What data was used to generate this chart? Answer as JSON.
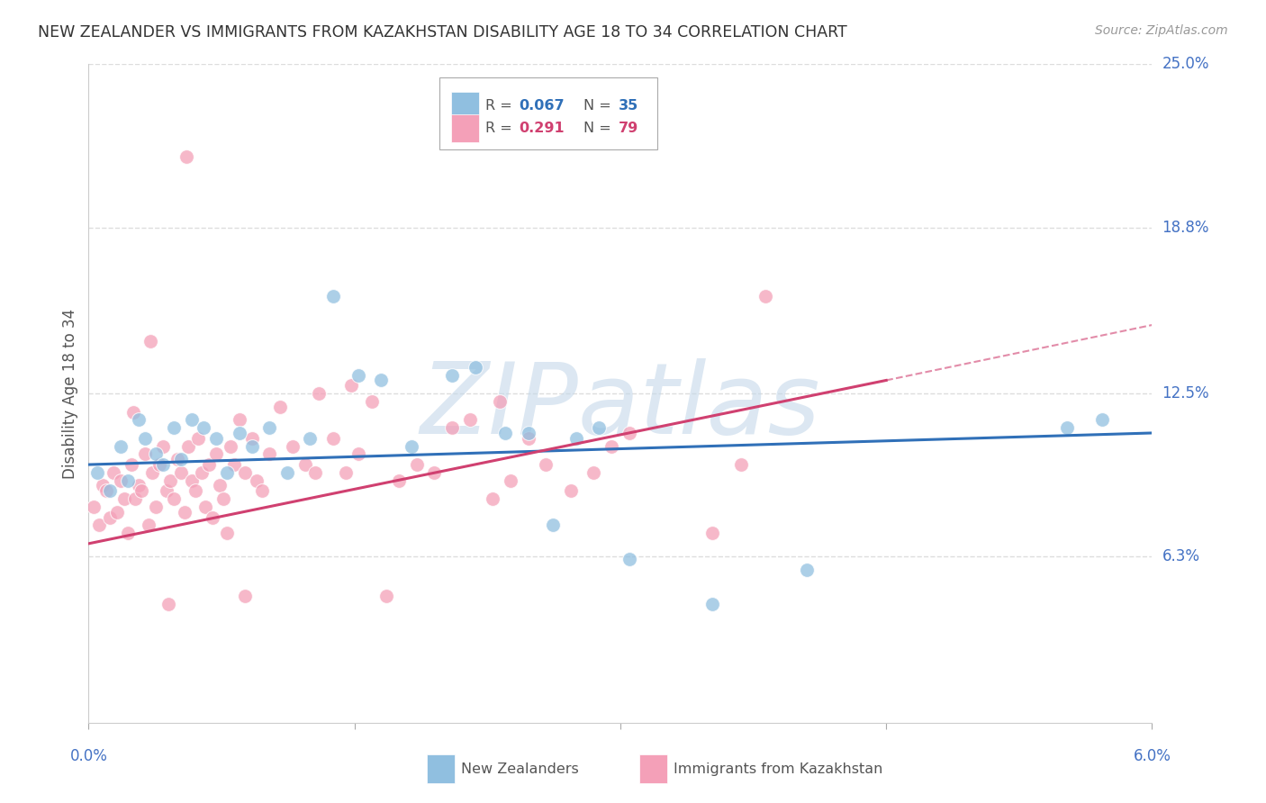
{
  "title": "NEW ZEALANDER VS IMMIGRANTS FROM KAZAKHSTAN DISABILITY AGE 18 TO 34 CORRELATION CHART",
  "source": "Source: ZipAtlas.com",
  "ylabel": "Disability Age 18 to 34",
  "x_min": 0.0,
  "x_max": 6.0,
  "y_min": 0.0,
  "y_max": 25.0,
  "ytick_values": [
    6.3,
    12.5,
    18.8,
    25.0
  ],
  "ytick_labels": [
    "6.3%",
    "12.5%",
    "18.8%",
    "25.0%"
  ],
  "xtick_values": [
    0.0,
    1.5,
    3.0,
    4.5,
    6.0
  ],
  "grid_color": "#dddddd",
  "background_color": "#ffffff",
  "watermark": "ZIPatlas",
  "watermark_color": "#c5d8ea",
  "blue_scatter_color": "#90bfe0",
  "pink_scatter_color": "#f4a0b8",
  "blue_line_color": "#3070b8",
  "pink_line_color": "#d04070",
  "axis_label_color": "#4472c4",
  "title_color": "#333333",
  "nz_line_x0": 0.0,
  "nz_line_y0": 9.8,
  "nz_line_x1": 6.0,
  "nz_line_y1": 11.0,
  "kz_line_x0": 0.0,
  "kz_line_y0": 6.8,
  "kz_line_x1": 4.5,
  "kz_line_y1": 13.0,
  "kz_dash_x0": 4.5,
  "kz_dash_y0": 13.0,
  "kz_dash_x1": 6.0,
  "kz_dash_y1": 15.1,
  "nz_x": [
    0.05,
    0.12,
    0.18,
    0.22,
    0.28,
    0.32,
    0.38,
    0.42,
    0.48,
    0.52,
    0.58,
    0.65,
    0.72,
    0.78,
    0.85,
    0.92,
    1.02,
    1.12,
    1.25,
    1.38,
    1.52,
    1.65,
    1.82,
    2.05,
    2.18,
    2.35,
    2.48,
    2.62,
    2.75,
    2.88,
    3.05,
    3.52,
    4.05,
    5.52,
    5.72
  ],
  "nz_y": [
    9.5,
    8.8,
    10.5,
    9.2,
    11.5,
    10.8,
    10.2,
    9.8,
    11.2,
    10.0,
    11.5,
    11.2,
    10.8,
    9.5,
    11.0,
    10.5,
    11.2,
    9.5,
    10.8,
    16.2,
    13.2,
    13.0,
    10.5,
    13.2,
    13.5,
    11.0,
    11.0,
    7.5,
    10.8,
    11.2,
    6.2,
    4.5,
    5.8,
    11.2,
    11.5
  ],
  "kz_x": [
    0.03,
    0.06,
    0.08,
    0.1,
    0.12,
    0.14,
    0.16,
    0.18,
    0.2,
    0.22,
    0.24,
    0.26,
    0.28,
    0.3,
    0.32,
    0.34,
    0.36,
    0.38,
    0.4,
    0.42,
    0.44,
    0.46,
    0.48,
    0.5,
    0.52,
    0.54,
    0.56,
    0.58,
    0.6,
    0.62,
    0.64,
    0.66,
    0.68,
    0.7,
    0.72,
    0.74,
    0.76,
    0.78,
    0.8,
    0.82,
    0.85,
    0.88,
    0.92,
    0.95,
    0.98,
    1.02,
    1.08,
    1.15,
    1.22,
    1.3,
    1.38,
    1.45,
    1.52,
    1.6,
    1.68,
    1.75,
    1.85,
    1.95,
    2.05,
    2.15,
    2.28,
    2.38,
    2.48,
    2.58,
    2.72,
    2.85,
    2.95,
    3.05,
    3.52,
    3.68,
    1.48,
    2.32,
    3.82,
    1.28,
    0.88,
    0.35,
    0.45,
    0.25,
    0.55
  ],
  "kz_y": [
    8.2,
    7.5,
    9.0,
    8.8,
    7.8,
    9.5,
    8.0,
    9.2,
    8.5,
    7.2,
    9.8,
    8.5,
    9.0,
    8.8,
    10.2,
    7.5,
    9.5,
    8.2,
    9.8,
    10.5,
    8.8,
    9.2,
    8.5,
    10.0,
    9.5,
    8.0,
    10.5,
    9.2,
    8.8,
    10.8,
    9.5,
    8.2,
    9.8,
    7.8,
    10.2,
    9.0,
    8.5,
    7.2,
    10.5,
    9.8,
    11.5,
    9.5,
    10.8,
    9.2,
    8.8,
    10.2,
    12.0,
    10.5,
    9.8,
    12.5,
    10.8,
    9.5,
    10.2,
    12.2,
    4.8,
    9.2,
    9.8,
    9.5,
    11.2,
    11.5,
    8.5,
    9.2,
    10.8,
    9.8,
    8.8,
    9.5,
    10.5,
    11.0,
    7.2,
    9.8,
    12.8,
    12.2,
    16.2,
    9.5,
    4.8,
    14.5,
    4.5,
    11.8,
    21.5
  ]
}
